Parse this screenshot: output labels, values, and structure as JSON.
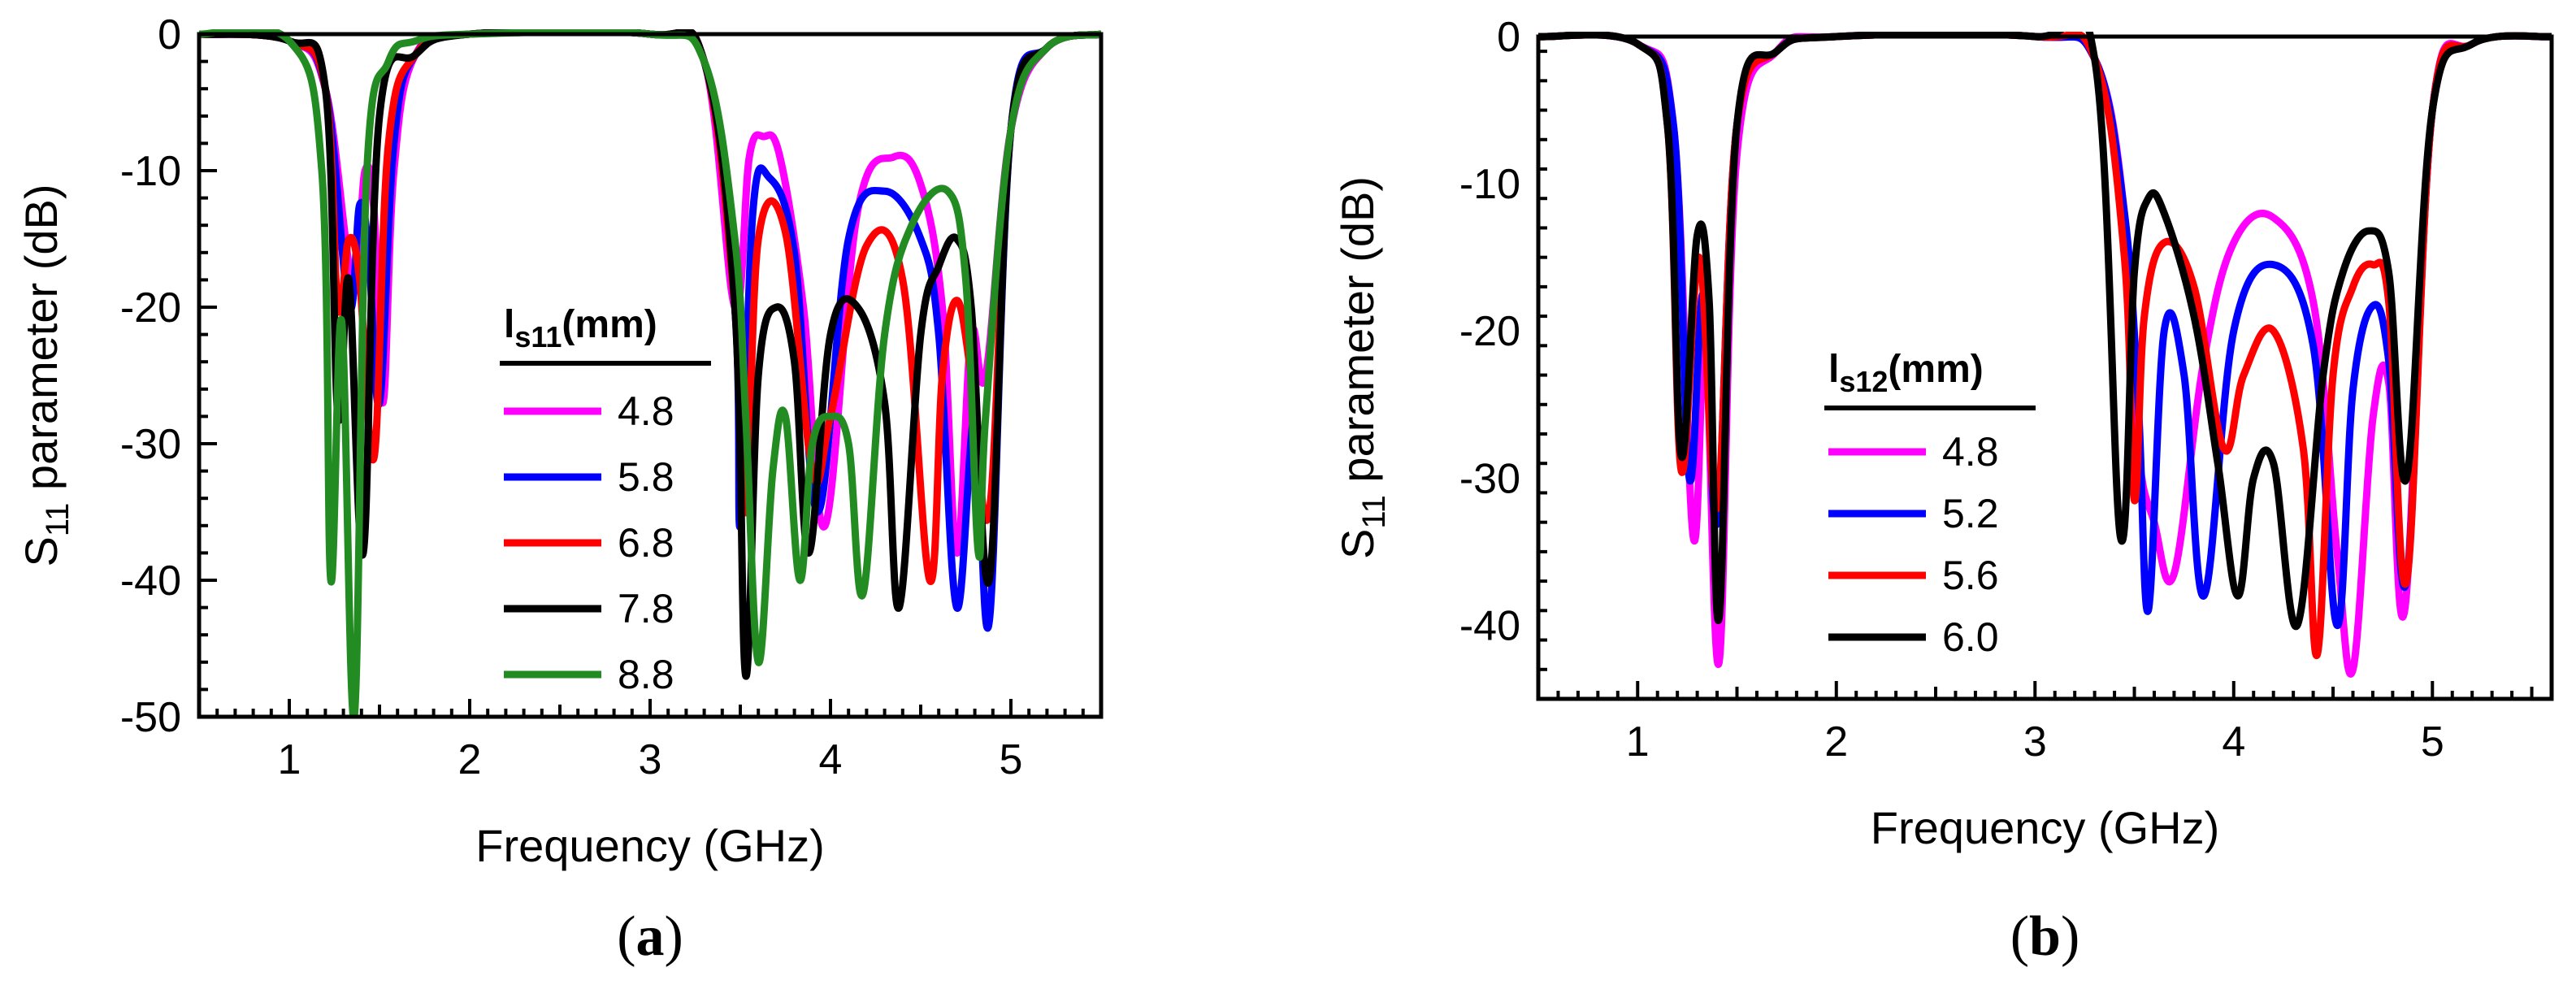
{
  "chart_data": [
    {
      "type": "line",
      "panel_label": "a",
      "title": "",
      "xlabel": "Frequency (GHz)",
      "ylabel_main": "S",
      "ylabel_sub": "11",
      "ylabel_rest": " parameter (dB)",
      "xlim": [
        0.5,
        5.5
      ],
      "ylim": [
        -50,
        0
      ],
      "xticks": [
        "1",
        "2",
        "3",
        "4",
        "5"
      ],
      "yticks": [
        "0",
        "-10",
        "-20",
        "-30",
        "-40",
        "-50"
      ],
      "legend_title_main": "l",
      "legend_title_sub": "s11",
      "legend_title_unit": "(mm)",
      "legend_placement": "center",
      "series": [
        {
          "name": "4.8",
          "color": "#ff00ff",
          "x": [
            0.5,
            1.0,
            1.2,
            1.35,
            1.42,
            1.47,
            1.52,
            1.58,
            1.7,
            2.0,
            3.0,
            3.3,
            3.47,
            3.55,
            3.63,
            3.72,
            3.85,
            3.97,
            4.15,
            4.35,
            4.5,
            4.62,
            4.7,
            4.78,
            4.86,
            5.0,
            5.2,
            5.5
          ],
          "y": [
            0,
            -0.5,
            -4,
            -18,
            -10,
            -13,
            -27,
            -10,
            -1.5,
            0,
            0,
            -2,
            -20,
            -9,
            -7.5,
            -9,
            -20,
            -36,
            -13,
            -9,
            -11,
            -20,
            -38,
            -22,
            -25,
            -7,
            -1,
            0
          ]
        },
        {
          "name": "5.8",
          "color": "#0000ff",
          "x": [
            0.5,
            1.0,
            1.2,
            1.33,
            1.39,
            1.44,
            1.5,
            1.58,
            1.7,
            2.0,
            3.0,
            3.3,
            3.47,
            3.5,
            3.57,
            3.66,
            3.8,
            3.93,
            4.1,
            4.3,
            4.5,
            4.6,
            4.7,
            4.8,
            4.88,
            5.0,
            5.2,
            5.5
          ],
          "y": [
            0,
            -0.5,
            -4,
            -20,
            -12.5,
            -16,
            -27,
            -8,
            -1.5,
            0,
            0,
            -2,
            -20,
            -36,
            -13,
            -10.5,
            -16,
            -35,
            -15,
            -11.5,
            -15,
            -22,
            -42,
            -28,
            -43,
            -7,
            -1,
            0
          ]
        },
        {
          "name": "6.8",
          "color": "#ff0000",
          "x": [
            0.5,
            1.0,
            1.2,
            1.27,
            1.33,
            1.39,
            1.47,
            1.55,
            1.7,
            2.0,
            3.0,
            3.3,
            3.47,
            3.53,
            3.6,
            3.75,
            3.9,
            4.0,
            4.2,
            4.4,
            4.55,
            4.62,
            4.7,
            4.78,
            4.88,
            5.0,
            5.2,
            5.5
          ],
          "y": [
            0,
            -0.5,
            -4,
            -20,
            -15,
            -18,
            -31,
            -8,
            -1.5,
            0,
            0,
            -2,
            -20,
            -35,
            -15,
            -14.5,
            -32,
            -28,
            -15.5,
            -18,
            -40,
            -25,
            -19.5,
            -25,
            -35,
            -7,
            -1,
            0
          ]
        },
        {
          "name": "7.8",
          "color": "#000000",
          "x": [
            0.5,
            1.0,
            1.2,
            1.27,
            1.33,
            1.41,
            1.5,
            1.7,
            2.0,
            3.0,
            3.3,
            3.47,
            3.53,
            3.6,
            3.7,
            3.8,
            3.88,
            4.0,
            4.15,
            4.3,
            4.38,
            4.5,
            4.6,
            4.7,
            4.78,
            4.88,
            5.0,
            5.2,
            5.5
          ],
          "y": [
            0,
            -0.5,
            -4,
            -28,
            -18,
            -38,
            -6,
            -1.5,
            0,
            0,
            -2,
            -20,
            -47,
            -25,
            -20,
            -24,
            -38,
            -22,
            -20,
            -27,
            -42,
            -22,
            -17,
            -15,
            -20,
            -40,
            -7,
            -1,
            0
          ]
        },
        {
          "name": "8.8",
          "color": "#228b22",
          "x": [
            0.5,
            1.0,
            1.18,
            1.23,
            1.29,
            1.36,
            1.43,
            1.55,
            1.7,
            2.0,
            3.0,
            3.3,
            3.47,
            3.53,
            3.6,
            3.68,
            3.75,
            3.83,
            3.9,
            4.0,
            4.1,
            4.18,
            4.3,
            4.45,
            4.65,
            4.75,
            4.82,
            4.86,
            5.0,
            5.2,
            5.5
          ],
          "y": [
            0,
            -0.5,
            -10,
            -40,
            -21,
            -50,
            -10,
            -2,
            -0.5,
            0,
            0,
            -2,
            -15,
            -28,
            -46,
            -32,
            -28,
            -40,
            -30,
            -28,
            -30,
            -41,
            -22,
            -14,
            -11.5,
            -18,
            -38,
            -28,
            -7,
            -1,
            0
          ]
        }
      ]
    },
    {
      "type": "line",
      "panel_label": "b",
      "title": "",
      "xlabel": "Frequency (GHz)",
      "ylabel_main": "S",
      "ylabel_sub": "11",
      "ylabel_rest": " parameter (dB)",
      "xlim": [
        0.5,
        5.6
      ],
      "ylim": [
        -45,
        0
      ],
      "xticks": [
        "1",
        "2",
        "3",
        "4",
        "5"
      ],
      "yticks": [
        "0",
        "-10",
        "-20",
        "-30",
        "-40"
      ],
      "legend_title_main": "l",
      "legend_title_sub": "s12",
      "legend_title_unit": "(mm)",
      "legend_placement": "center-left",
      "series": [
        {
          "name": "4.8",
          "color": "#ff00ff",
          "x": [
            0.5,
            1.0,
            1.18,
            1.28,
            1.34,
            1.41,
            1.5,
            1.7,
            2.0,
            3.0,
            3.3,
            3.45,
            3.52,
            3.6,
            3.7,
            3.85,
            4.0,
            4.2,
            4.4,
            4.52,
            4.6,
            4.7,
            4.78,
            4.86,
            5.0,
            5.2,
            5.6
          ],
          "y": [
            0,
            -0.5,
            -6,
            -34,
            -20.5,
            -42.5,
            -8,
            -1,
            0,
            0,
            -1.5,
            -12,
            -28,
            -33,
            -36.5,
            -22,
            -14,
            -12.3,
            -18,
            -35,
            -43,
            -26,
            -23.5,
            -39,
            -5,
            -0.5,
            0
          ]
        },
        {
          "name": "5.2",
          "color": "#0000ff",
          "x": [
            0.5,
            1.0,
            1.18,
            1.26,
            1.33,
            1.4,
            1.5,
            1.7,
            2.0,
            3.0,
            3.3,
            3.45,
            3.52,
            3.57,
            3.65,
            3.75,
            3.85,
            4.0,
            4.2,
            4.4,
            4.52,
            4.6,
            4.7,
            4.78,
            4.87,
            5.0,
            5.2,
            5.6
          ],
          "y": [
            0,
            -0.5,
            -6,
            -30,
            -17.5,
            -33,
            -6,
            -1,
            0,
            0,
            -1.5,
            -12,
            -25,
            -39,
            -20,
            -23,
            -38,
            -20,
            -15.5,
            -21,
            -40,
            -24,
            -18.3,
            -22,
            -37,
            -5,
            -0.5,
            0
          ]
        },
        {
          "name": "5.6",
          "color": "#ff0000",
          "x": [
            0.5,
            1.0,
            1.15,
            1.22,
            1.31,
            1.4,
            1.5,
            1.7,
            2.0,
            3.0,
            3.3,
            3.45,
            3.5,
            3.55,
            3.65,
            3.8,
            3.95,
            4.05,
            4.2,
            4.35,
            4.42,
            4.5,
            4.6,
            4.7,
            4.78,
            4.87,
            5.0,
            5.2,
            5.6
          ],
          "y": [
            0,
            -0.5,
            -6,
            -29.5,
            -15,
            -32,
            -6,
            -1,
            0,
            0,
            -1.5,
            -15,
            -31.5,
            -19,
            -14,
            -17,
            -28,
            -23,
            -20,
            -28,
            -42,
            -23,
            -17,
            -15.5,
            -18,
            -37,
            -5,
            -0.5,
            0
          ]
        },
        {
          "name": "6.0",
          "color": "#000000",
          "x": [
            0.5,
            1.0,
            1.15,
            1.22,
            1.3,
            1.36,
            1.41,
            1.5,
            1.7,
            2.0,
            3.0,
            3.3,
            3.43,
            3.5,
            3.57,
            3.65,
            3.8,
            3.92,
            4.02,
            4.1,
            4.2,
            4.32,
            4.45,
            4.55,
            4.68,
            4.78,
            4.87,
            5.0,
            5.2,
            5.6
          ],
          "y": [
            0,
            -0.5,
            -6,
            -28.5,
            -13.5,
            -18,
            -39.5,
            -6,
            -1,
            0,
            0,
            -1.5,
            -34,
            -16,
            -11,
            -12,
            -19,
            -29,
            -38,
            -30,
            -29,
            -40,
            -23,
            -16,
            -13.2,
            -16,
            -30,
            -5,
            -0.5,
            0
          ]
        }
      ]
    }
  ]
}
